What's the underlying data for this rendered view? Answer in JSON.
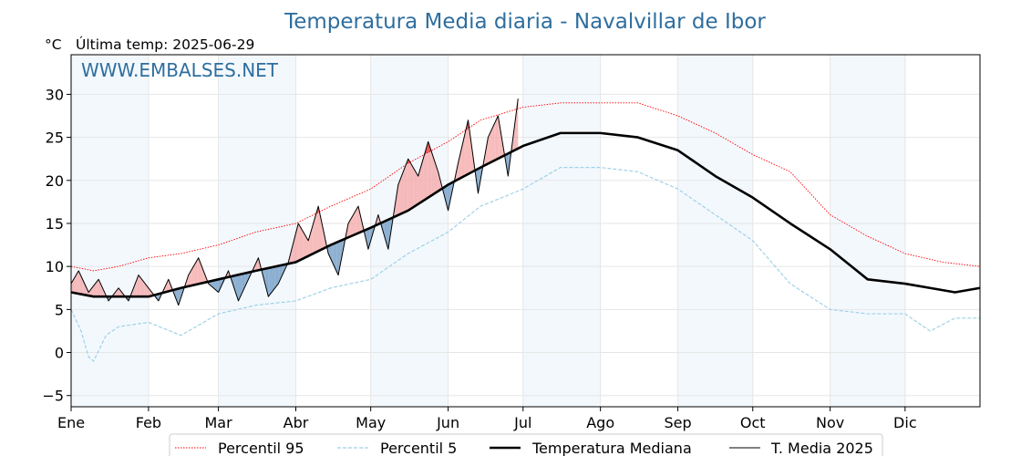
{
  "header": {
    "title": "Temperatura Media diaria - Navalvillar de Ibor",
    "unit": "°C",
    "last_temp": "Última temp: 2025-06-29",
    "watermark": "WWW.EMBALSES.NET"
  },
  "chart_data": {
    "type": "line",
    "title": "Temperatura Media diaria - Navalvillar de Ibor",
    "ylabel": "°C",
    "ylim": [
      -6.3,
      34.6
    ],
    "yticks": [
      -5,
      0,
      5,
      10,
      15,
      20,
      25,
      30
    ],
    "xlim": [
      1,
      365
    ],
    "months": [
      "Ene",
      "Feb",
      "Mar",
      "Abr",
      "May",
      "Jun",
      "Jul",
      "Ago",
      "Sep",
      "Oct",
      "Nov",
      "Dic"
    ],
    "month_start_days": [
      1,
      32,
      60,
      91,
      121,
      152,
      182,
      213,
      244,
      274,
      305,
      335
    ],
    "grid": true,
    "legend_position": "bottom-center",
    "series": [
      {
        "name": "Percentil 95",
        "color": "#ff0000",
        "style": "dotted",
        "x": [
          1,
          10,
          20,
          32,
          45,
          60,
          75,
          91,
          105,
          121,
          136,
          152,
          165,
          182,
          197,
          213,
          228,
          244,
          259,
          274,
          289,
          305,
          320,
          335,
          350,
          365
        ],
        "y": [
          10.0,
          9.5,
          10.0,
          11.0,
          11.5,
          12.5,
          14.0,
          15.0,
          17.0,
          19.0,
          22.0,
          24.5,
          27.0,
          28.5,
          29.0,
          29.0,
          29.0,
          27.5,
          25.5,
          23.0,
          21.0,
          16.0,
          13.5,
          11.5,
          10.5,
          10.0
        ]
      },
      {
        "name": "Percentil 5",
        "color": "#9fd2e6",
        "style": "dashed",
        "x": [
          1,
          5,
          8,
          10,
          15,
          20,
          32,
          45,
          60,
          75,
          91,
          105,
          121,
          136,
          152,
          165,
          182,
          197,
          213,
          228,
          244,
          259,
          274,
          289,
          305,
          320,
          335,
          345,
          355,
          365
        ],
        "y": [
          5.0,
          2.5,
          -0.5,
          -1.0,
          2.0,
          3.0,
          3.5,
          2.0,
          4.5,
          5.5,
          6.0,
          7.5,
          8.5,
          11.5,
          14.0,
          17.0,
          19.0,
          21.5,
          21.5,
          21.0,
          19.0,
          16.0,
          13.0,
          8.0,
          5.0,
          4.5,
          4.5,
          2.5,
          4.0,
          4.0
        ]
      },
      {
        "name": "Temperatura Mediana",
        "color": "#000000",
        "style": "solid-thick",
        "x": [
          1,
          10,
          20,
          32,
          45,
          60,
          75,
          91,
          105,
          121,
          136,
          152,
          165,
          182,
          197,
          213,
          228,
          244,
          259,
          274,
          289,
          305,
          320,
          335,
          345,
          355,
          365
        ],
        "y": [
          7.0,
          6.5,
          6.5,
          6.5,
          7.5,
          8.5,
          9.5,
          10.5,
          12.5,
          14.5,
          16.5,
          19.5,
          21.5,
          24.0,
          25.5,
          25.5,
          25.0,
          23.5,
          20.5,
          18.0,
          15.0,
          12.0,
          8.5,
          8.0,
          7.5,
          7.0,
          7.5
        ]
      },
      {
        "name": "T. Media 2025",
        "color": "#000000",
        "style": "solid-thin",
        "x": [
          1,
          4,
          8,
          12,
          16,
          20,
          24,
          28,
          32,
          36,
          40,
          44,
          48,
          52,
          56,
          60,
          64,
          68,
          72,
          76,
          80,
          84,
          88,
          92,
          96,
          100,
          104,
          108,
          112,
          116,
          120,
          124,
          128,
          132,
          136,
          140,
          144,
          148,
          152,
          156,
          160,
          164,
          168,
          172,
          176,
          180
        ],
        "y": [
          8.0,
          9.5,
          7.0,
          8.5,
          6.0,
          7.5,
          6.0,
          9.0,
          7.5,
          6.0,
          8.5,
          5.5,
          9.0,
          11.0,
          8.0,
          7.0,
          9.5,
          6.0,
          8.5,
          11.0,
          6.5,
          8.0,
          10.5,
          15.0,
          13.0,
          17.0,
          11.5,
          9.0,
          15.0,
          17.0,
          12.0,
          16.0,
          12.0,
          19.5,
          22.5,
          20.5,
          24.5,
          21.0,
          16.5,
          22.0,
          27.0,
          18.5,
          25.0,
          27.5,
          20.5,
          29.5
        ]
      }
    ]
  }
}
